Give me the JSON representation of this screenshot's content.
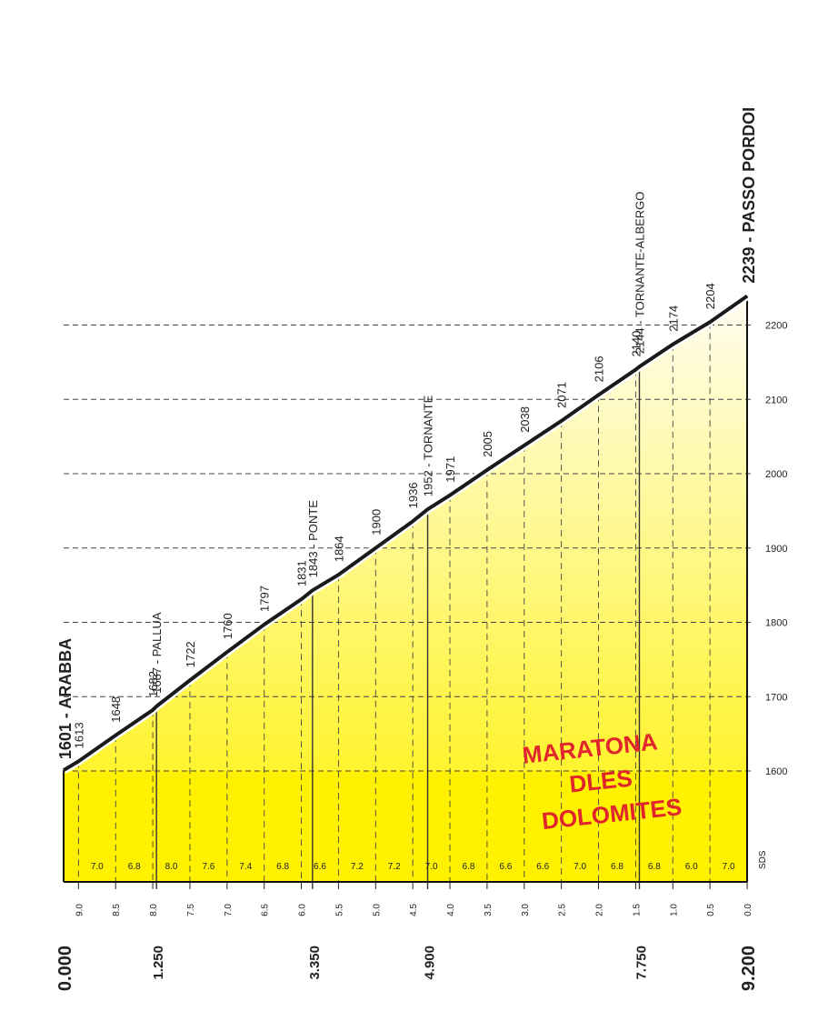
{
  "chart_data": {
    "type": "area",
    "title": "",
    "xlabel": "",
    "ylabel": "",
    "ylim": [
      1500,
      2239
    ],
    "xlim": [
      0,
      9.2
    ],
    "start": {
      "label": "1601 - ARABBA",
      "km": "0.000"
    },
    "finish": {
      "label": "2239 - PASSO PORDOI",
      "km": "9.200"
    },
    "y_ticks": [
      "1600",
      "1700",
      "1800",
      "1900",
      "2000",
      "2100",
      "2200"
    ],
    "slope_axis_label": "SDS",
    "km_to_go_ticks": [
      "9.0",
      "8.5",
      "8.0",
      "7.5",
      "7.0",
      "6.5",
      "6.0",
      "5.5",
      "5.0",
      "4.5",
      "4.0",
      "3.5",
      "3.0",
      "2.5",
      "2.0",
      "1.5",
      "1.0",
      "0.5",
      "0.0"
    ],
    "km_to_go_tick_values": [
      9.0,
      8.5,
      8.0,
      7.5,
      7.0,
      6.5,
      6.0,
      5.5,
      5.0,
      4.5,
      4.0,
      3.5,
      3.0,
      2.5,
      2.0,
      1.5,
      1.0,
      0.5,
      0.0
    ],
    "landmark_km": [
      {
        "value": 1.25,
        "label": "1.250"
      },
      {
        "value": 3.35,
        "label": "3.350"
      },
      {
        "value": 4.9,
        "label": "4.900"
      },
      {
        "value": 7.75,
        "label": "7.750"
      }
    ],
    "profile": {
      "x": [
        0,
        0.2,
        0.7,
        1.2,
        1.25,
        1.7,
        2.2,
        2.7,
        3.2,
        3.35,
        3.7,
        4.2,
        4.7,
        4.9,
        5.2,
        5.7,
        6.2,
        6.7,
        7.2,
        7.7,
        7.75,
        8.2,
        8.7,
        9.2
      ],
      "y": [
        1601,
        1613,
        1648,
        1682,
        1687,
        1722,
        1760,
        1797,
        1831,
        1843,
        1864,
        1900,
        1936,
        1952,
        1971,
        2005,
        2038,
        2071,
        2106,
        2140,
        2144,
        2174,
        2204,
        2239
      ]
    },
    "point_labels": [
      {
        "x": 0.2,
        "text": "1613"
      },
      {
        "x": 0.7,
        "text": "1648"
      },
      {
        "x": 1.2,
        "text": "1682"
      },
      {
        "x": 1.25,
        "text": "1687 - PALLUA"
      },
      {
        "x": 1.7,
        "text": "1722"
      },
      {
        "x": 2.2,
        "text": "1760"
      },
      {
        "x": 2.7,
        "text": "1797"
      },
      {
        "x": 3.2,
        "text": "1831"
      },
      {
        "x": 3.35,
        "text": "1843 - PONTE"
      },
      {
        "x": 3.7,
        "text": "1864"
      },
      {
        "x": 4.2,
        "text": "1900"
      },
      {
        "x": 4.7,
        "text": "1936"
      },
      {
        "x": 4.9,
        "text": "1952 - TORNANTE"
      },
      {
        "x": 5.2,
        "text": "1971"
      },
      {
        "x": 5.7,
        "text": "2005"
      },
      {
        "x": 6.2,
        "text": "2038"
      },
      {
        "x": 6.7,
        "text": "2071"
      },
      {
        "x": 7.2,
        "text": "2106"
      },
      {
        "x": 7.7,
        "text": "2140"
      },
      {
        "x": 7.75,
        "text": "2144 - TORNANTE-ALBERGO"
      },
      {
        "x": 8.2,
        "text": "2174"
      },
      {
        "x": 8.7,
        "text": "2204"
      }
    ],
    "gradients": {
      "x_mid": [
        0.1,
        0.45,
        0.95,
        1.45,
        1.95,
        2.45,
        2.95,
        3.45,
        3.95,
        4.45,
        4.95,
        5.45,
        5.95,
        6.45,
        6.95,
        7.45,
        7.95,
        8.45,
        8.95
      ],
      "labels": [
        "7.0",
        "6.8",
        "8.0",
        "7.6",
        "7.4",
        "6.8",
        "6.6",
        "7.2",
        "7.2",
        "7.0",
        "6.8",
        "6.6",
        "6.6",
        "7.0",
        "6.8",
        "6.8",
        "6.0",
        "7.0"
      ],
      "label_x": [
        0.45,
        0.95,
        1.45,
        1.95,
        2.45,
        2.95,
        3.45,
        3.95,
        4.45,
        4.95,
        5.45,
        5.95,
        6.45,
        6.95,
        7.45,
        7.95,
        8.45,
        8.95
      ]
    },
    "grid": true,
    "colors": {
      "band_bottom": "#fff100",
      "band_top": "#fffcee",
      "profile_line": "#1a1a1a",
      "grid": "#444444",
      "logo_red": "#e0252c"
    }
  },
  "logo": {
    "lines": [
      "MARATONA",
      "DLES",
      "DOLOMITES"
    ]
  }
}
